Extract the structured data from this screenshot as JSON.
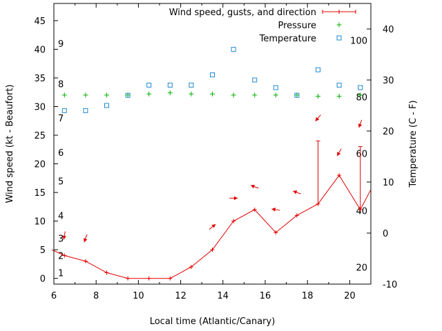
{
  "chart_data": {
    "type": "line",
    "xlabel": "Local time (Atlantic/Canary)",
    "ylabel": "Wind speed (kt - Beaufort)",
    "y2label": "Temperature (C - F)",
    "xlim": [
      6,
      21
    ],
    "ylim": [
      -1,
      48
    ],
    "y2lim": [
      -10,
      45
    ],
    "x_ticks": [
      "6",
      "8",
      "10",
      "12",
      "14",
      "16",
      "18",
      "20"
    ],
    "y_ticks": [
      "0",
      "5",
      "10",
      "15",
      "20",
      "25",
      "30",
      "35",
      "40",
      "45"
    ],
    "y2_ticks_celsius": [
      "-10",
      "0",
      "10",
      "20",
      "30",
      "40"
    ],
    "beaufort_labels": [
      {
        "text": "1",
        "y": 1
      },
      {
        "text": "2",
        "y": 4
      },
      {
        "text": "3",
        "y": 7
      },
      {
        "text": "4",
        "y": 11
      },
      {
        "text": "5",
        "y": 17
      },
      {
        "text": "6",
        "y": 22
      },
      {
        "text": "7",
        "y": 28
      },
      {
        "text": "8",
        "y": 34
      },
      {
        "text": "9",
        "y": 41
      }
    ],
    "fahrenheit_labels": [
      {
        "text": "20",
        "c": -6.7
      },
      {
        "text": "40",
        "c": 4.4
      },
      {
        "text": "60",
        "c": 15.6
      },
      {
        "text": "80",
        "c": 26.7
      },
      {
        "text": "100",
        "c": 37.8
      }
    ],
    "legend": {
      "placement": "top-right",
      "wind": "Wind speed, gusts, and direction",
      "pressure": "Pressure",
      "temperature": "Temperature"
    },
    "colors": {
      "wind": "#e00000",
      "pressure": "#00b000",
      "temperature": "#1e88d0"
    },
    "series": [
      {
        "name": "Wind speed, gusts, and direction",
        "x": [
          5.9,
          6.5,
          7.5,
          8.5,
          9.5,
          10.5,
          11.5,
          12.5,
          13.5,
          14.5,
          15.5,
          16.5,
          17.5,
          18.5,
          19.5,
          20.5,
          21.0
        ],
        "y": [
          5,
          4,
          3,
          1,
          0,
          0,
          0,
          2,
          5,
          10,
          12,
          8,
          11,
          13,
          18,
          12,
          15.5
        ]
      },
      {
        "name": "Gusts",
        "x": [
          18.5,
          20.5
        ],
        "y": [
          24,
          23
        ]
      },
      {
        "name": "Direction",
        "x": [
          6.5,
          7.5,
          13.5,
          14.5,
          15.5,
          16.5,
          17.5,
          18.5,
          19.5,
          20.5
        ],
        "y": [
          7.5,
          7,
          9,
          14,
          16,
          12,
          15,
          28,
          22,
          27
        ],
        "angle_deg": [
          100,
          110,
          -40,
          0,
          200,
          190,
          200,
          130,
          120,
          110
        ]
      },
      {
        "name": "Pressure",
        "x": [
          6.5,
          7.5,
          8.5,
          9.5,
          10.5,
          11.5,
          12.5,
          13.5,
          14.5,
          15.5,
          16.5,
          17.5,
          18.5,
          19.5,
          20.5
        ],
        "y": [
          32,
          32,
          32,
          32,
          32.2,
          32.4,
          32.2,
          32.2,
          32,
          32,
          32,
          32,
          31.8,
          31.8,
          32
        ]
      },
      {
        "name": "Temperature",
        "x": [
          6.5,
          7.5,
          8.5,
          9.5,
          10.5,
          11.5,
          12.5,
          13.5,
          14.5,
          15.5,
          16.5,
          17.5,
          18.5,
          19.5,
          20.5
        ],
        "y": [
          24,
          24,
          25,
          27,
          29,
          29,
          29,
          31,
          36,
          30,
          28.5,
          27,
          32,
          29,
          28.5
        ]
      }
    ]
  }
}
